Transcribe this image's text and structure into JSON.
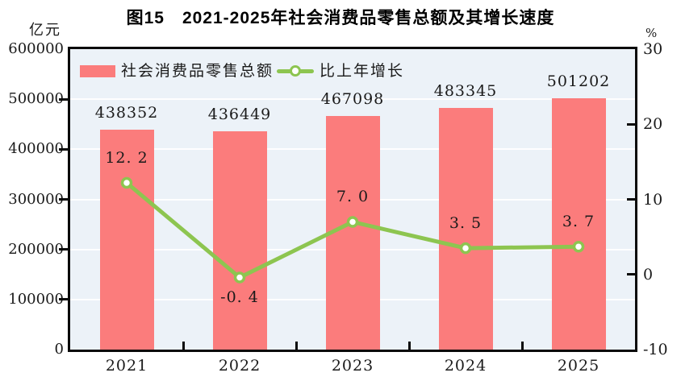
{
  "title": "图15　2021-2025年社会消费品零售总额及其增长速度",
  "axes": {
    "left": {
      "unit": "亿元",
      "ticks": [
        "600000",
        "500000",
        "400000",
        "300000",
        "200000",
        "100000",
        "0"
      ]
    },
    "right": {
      "unit": "%",
      "ticks": [
        "30",
        "20",
        "10",
        "0",
        "-10"
      ]
    },
    "x": {
      "ticks": [
        "2021",
        "2022",
        "2023",
        "2024",
        "2025"
      ]
    }
  },
  "legend": [
    {
      "label": "社会消费品零售总额",
      "marker": "bar-swatch"
    },
    {
      "label": "比上年增长",
      "marker": "line-marker"
    }
  ],
  "colors": {
    "bar": "#fb7c7c",
    "line": "#8dc550",
    "marker_fill": "#ffffff",
    "plot_bg": "#ecf2f8",
    "grid": "#ffffff",
    "frame": "#0a0a0a",
    "text": "#1a1a1a"
  },
  "chart_data": {
    "type": "bar",
    "title": "图15　2021-2025年社会消费品零售总额及其增长速度",
    "categories": [
      "2021",
      "2022",
      "2023",
      "2024",
      "2025"
    ],
    "series": [
      {
        "name": "社会消费品零售总额",
        "kind": "bar",
        "axis": "left",
        "unit": "亿元",
        "values": [
          438352,
          436449,
          467098,
          483345,
          501202
        ],
        "labels": [
          "438352",
          "436449",
          "467098",
          "483345",
          "501202"
        ],
        "color": "#fb7c7c"
      },
      {
        "name": "比上年增长",
        "kind": "line",
        "axis": "right",
        "unit": "%",
        "values": [
          12.2,
          -0.4,
          7.0,
          3.5,
          3.7
        ],
        "labels": [
          "12. 2",
          "-0. 4",
          "7. 0",
          "3. 5",
          "3. 7"
        ],
        "label_side": [
          "above",
          "below",
          "above",
          "above",
          "above"
        ],
        "color": "#8dc550"
      }
    ],
    "left_ylim": [
      0,
      600000
    ],
    "left_tick_step": 100000,
    "right_ylim": [
      -10,
      30
    ],
    "right_tick_step": 10,
    "grid": true,
    "legend_position": "top-left-inside"
  }
}
